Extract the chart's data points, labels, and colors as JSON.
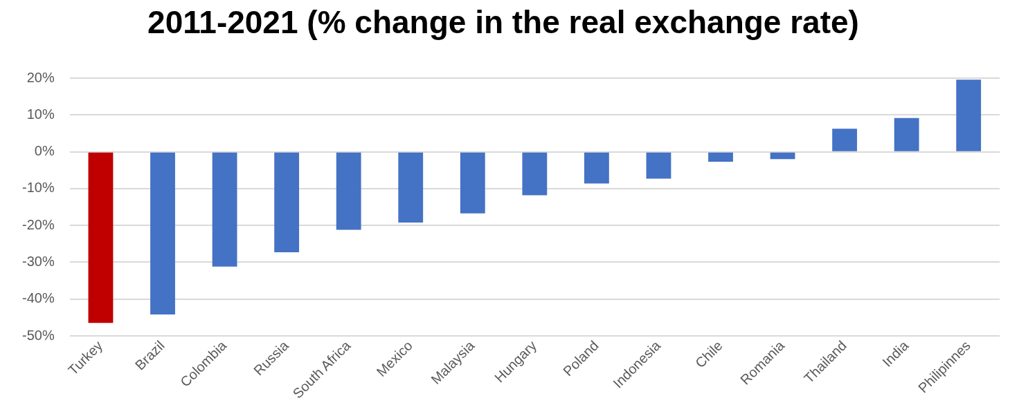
{
  "chart_data": {
    "type": "bar",
    "title": "2011-2021 (% change in the real exchange rate)",
    "categories": [
      "Turkey",
      "Brazil",
      "Colombia",
      "Russia",
      "South Africa",
      "Mexico",
      "Malaysia",
      "Hungary",
      "Poland",
      "Indonesia",
      "Chile",
      "Romania",
      "Thailand",
      "India",
      "Philipinnes"
    ],
    "values": [
      -46.5,
      -44.2,
      -31.2,
      -27.3,
      -21.2,
      -19.2,
      -16.7,
      -11.8,
      -8.6,
      -7.3,
      -2.7,
      -2,
      6.3,
      9.2,
      19.6
    ],
    "colors": [
      "#c00000",
      "#4472c4",
      "#4472c4",
      "#4472c4",
      "#4472c4",
      "#4472c4",
      "#4472c4",
      "#4472c4",
      "#4472c4",
      "#4472c4",
      "#4472c4",
      "#4472c4",
      "#4472c4",
      "#4472c4",
      "#4472c4"
    ],
    "ylim": [
      -50,
      20
    ],
    "yticks": [
      {
        "value": -50,
        "label": "-50%"
      },
      {
        "value": -40,
        "label": "-40%"
      },
      {
        "value": -30,
        "label": "-30%"
      },
      {
        "value": -20,
        "label": "-20%"
      },
      {
        "value": -10,
        "label": "-10%"
      },
      {
        "value": 0,
        "label": "0%"
      },
      {
        "value": 10,
        "label": "10%"
      },
      {
        "value": 20,
        "label": "20%"
      }
    ],
    "grid": "y"
  }
}
